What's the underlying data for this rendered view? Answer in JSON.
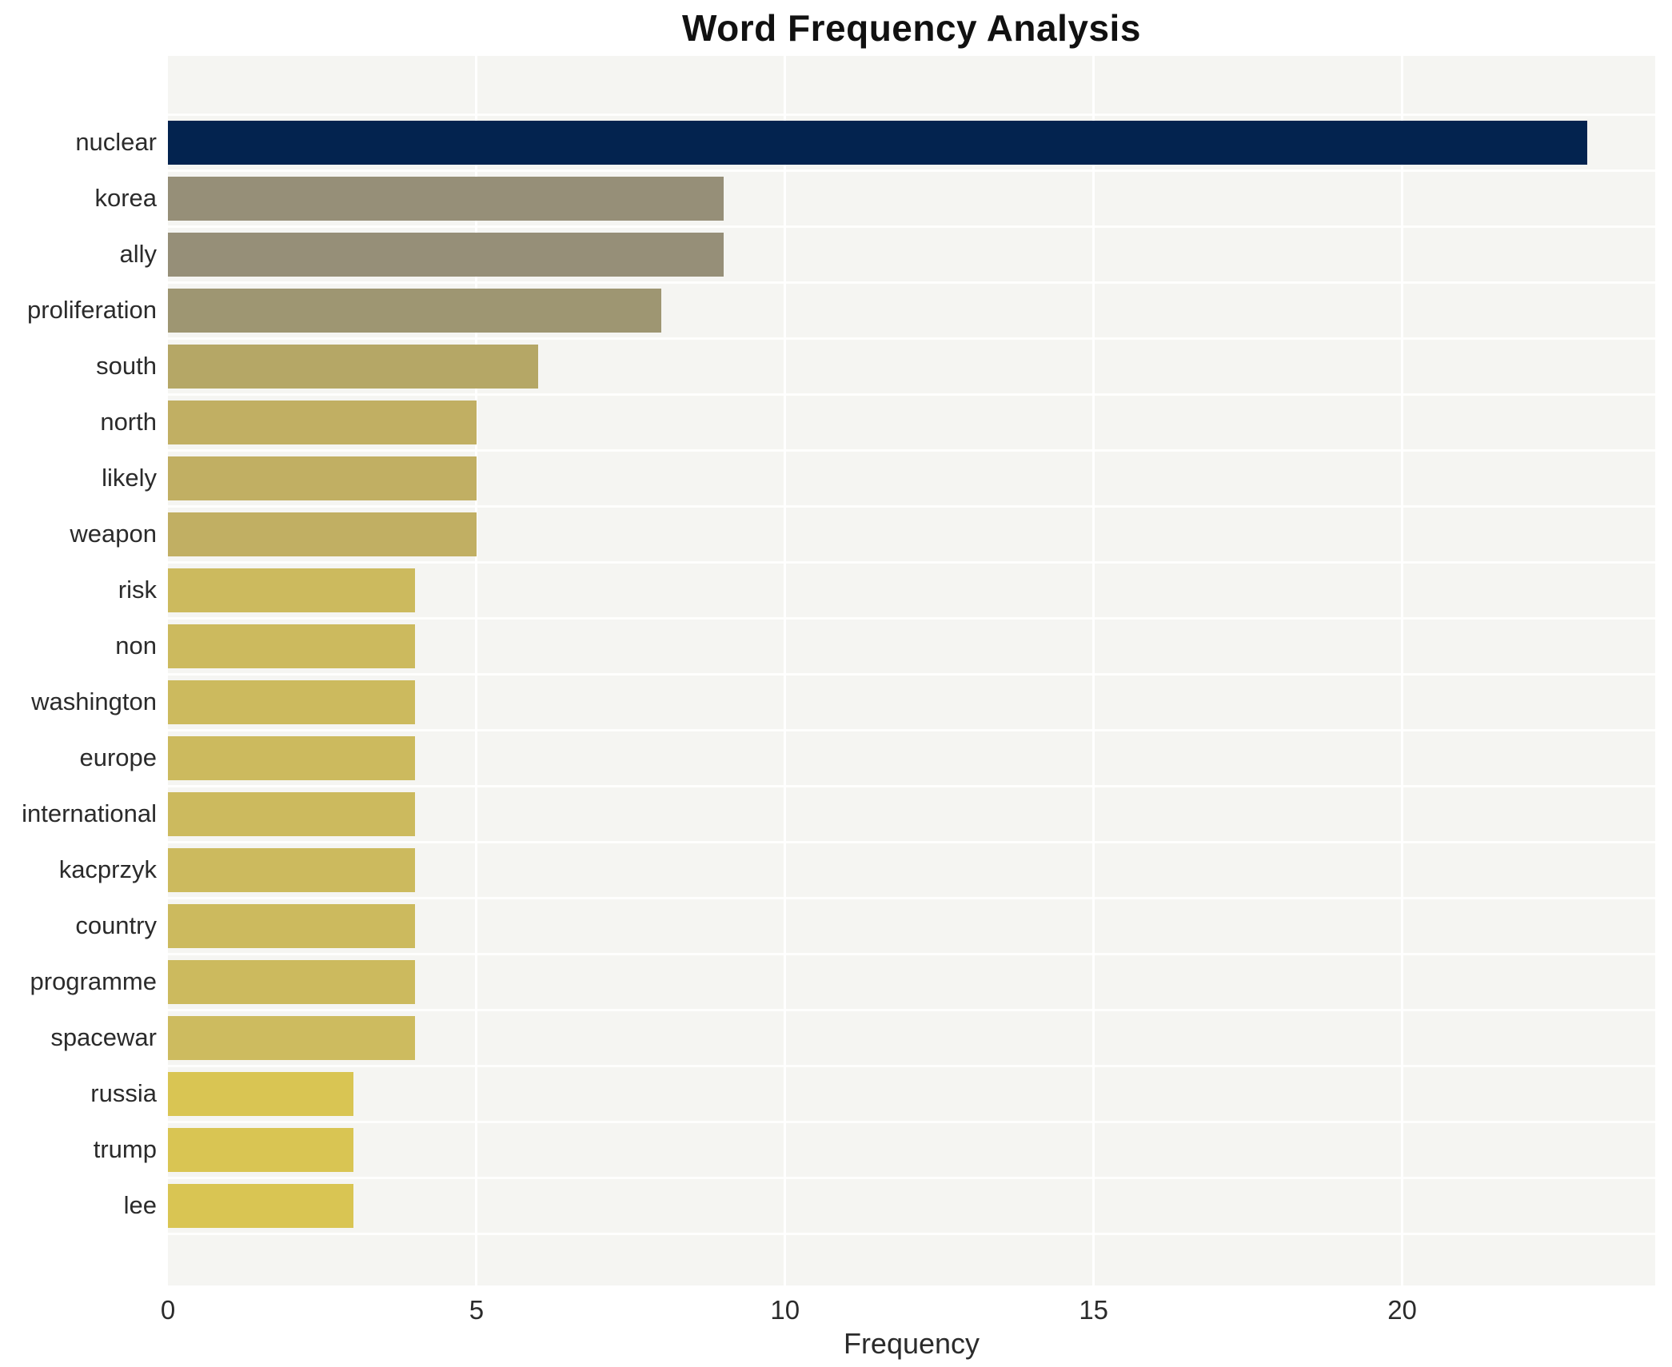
{
  "chart_data": {
    "type": "bar",
    "orientation": "horizontal",
    "title": "Word Frequency Analysis",
    "xlabel": "Frequency",
    "ylabel": "",
    "categories": [
      "nuclear",
      "korea",
      "ally",
      "proliferation",
      "south",
      "north",
      "likely",
      "weapon",
      "risk",
      "non",
      "washington",
      "europe",
      "international",
      "kacprzyk",
      "country",
      "programme",
      "spacewar",
      "russia",
      "trump",
      "lee"
    ],
    "values": [
      23,
      9,
      9,
      8,
      6,
      5,
      5,
      5,
      4,
      4,
      4,
      4,
      4,
      4,
      4,
      4,
      4,
      3,
      3,
      3
    ],
    "bar_colors": [
      "#03234f",
      "#968f78",
      "#968f78",
      "#9e9672",
      "#b5a766",
      "#c1af63",
      "#c1af63",
      "#c1af63",
      "#ccba5e",
      "#ccba5e",
      "#ccba5e",
      "#ccba5e",
      "#ccba5e",
      "#ccba5e",
      "#ccba5e",
      "#ccba5e",
      "#cdbb5f",
      "#d9c553",
      "#d9c553",
      "#d9c553"
    ],
    "xticks": [
      0,
      5,
      10,
      15,
      20
    ],
    "xtick_labels": [
      "0",
      "5",
      "10",
      "15",
      "20"
    ],
    "xlim": [
      0,
      24.1
    ],
    "grid": true,
    "legend": "none",
    "plot_bg_color": "#f5f5f2",
    "grid_color": "#ffffff",
    "title_color": "#111111",
    "label_color": "#2b2b2b"
  }
}
